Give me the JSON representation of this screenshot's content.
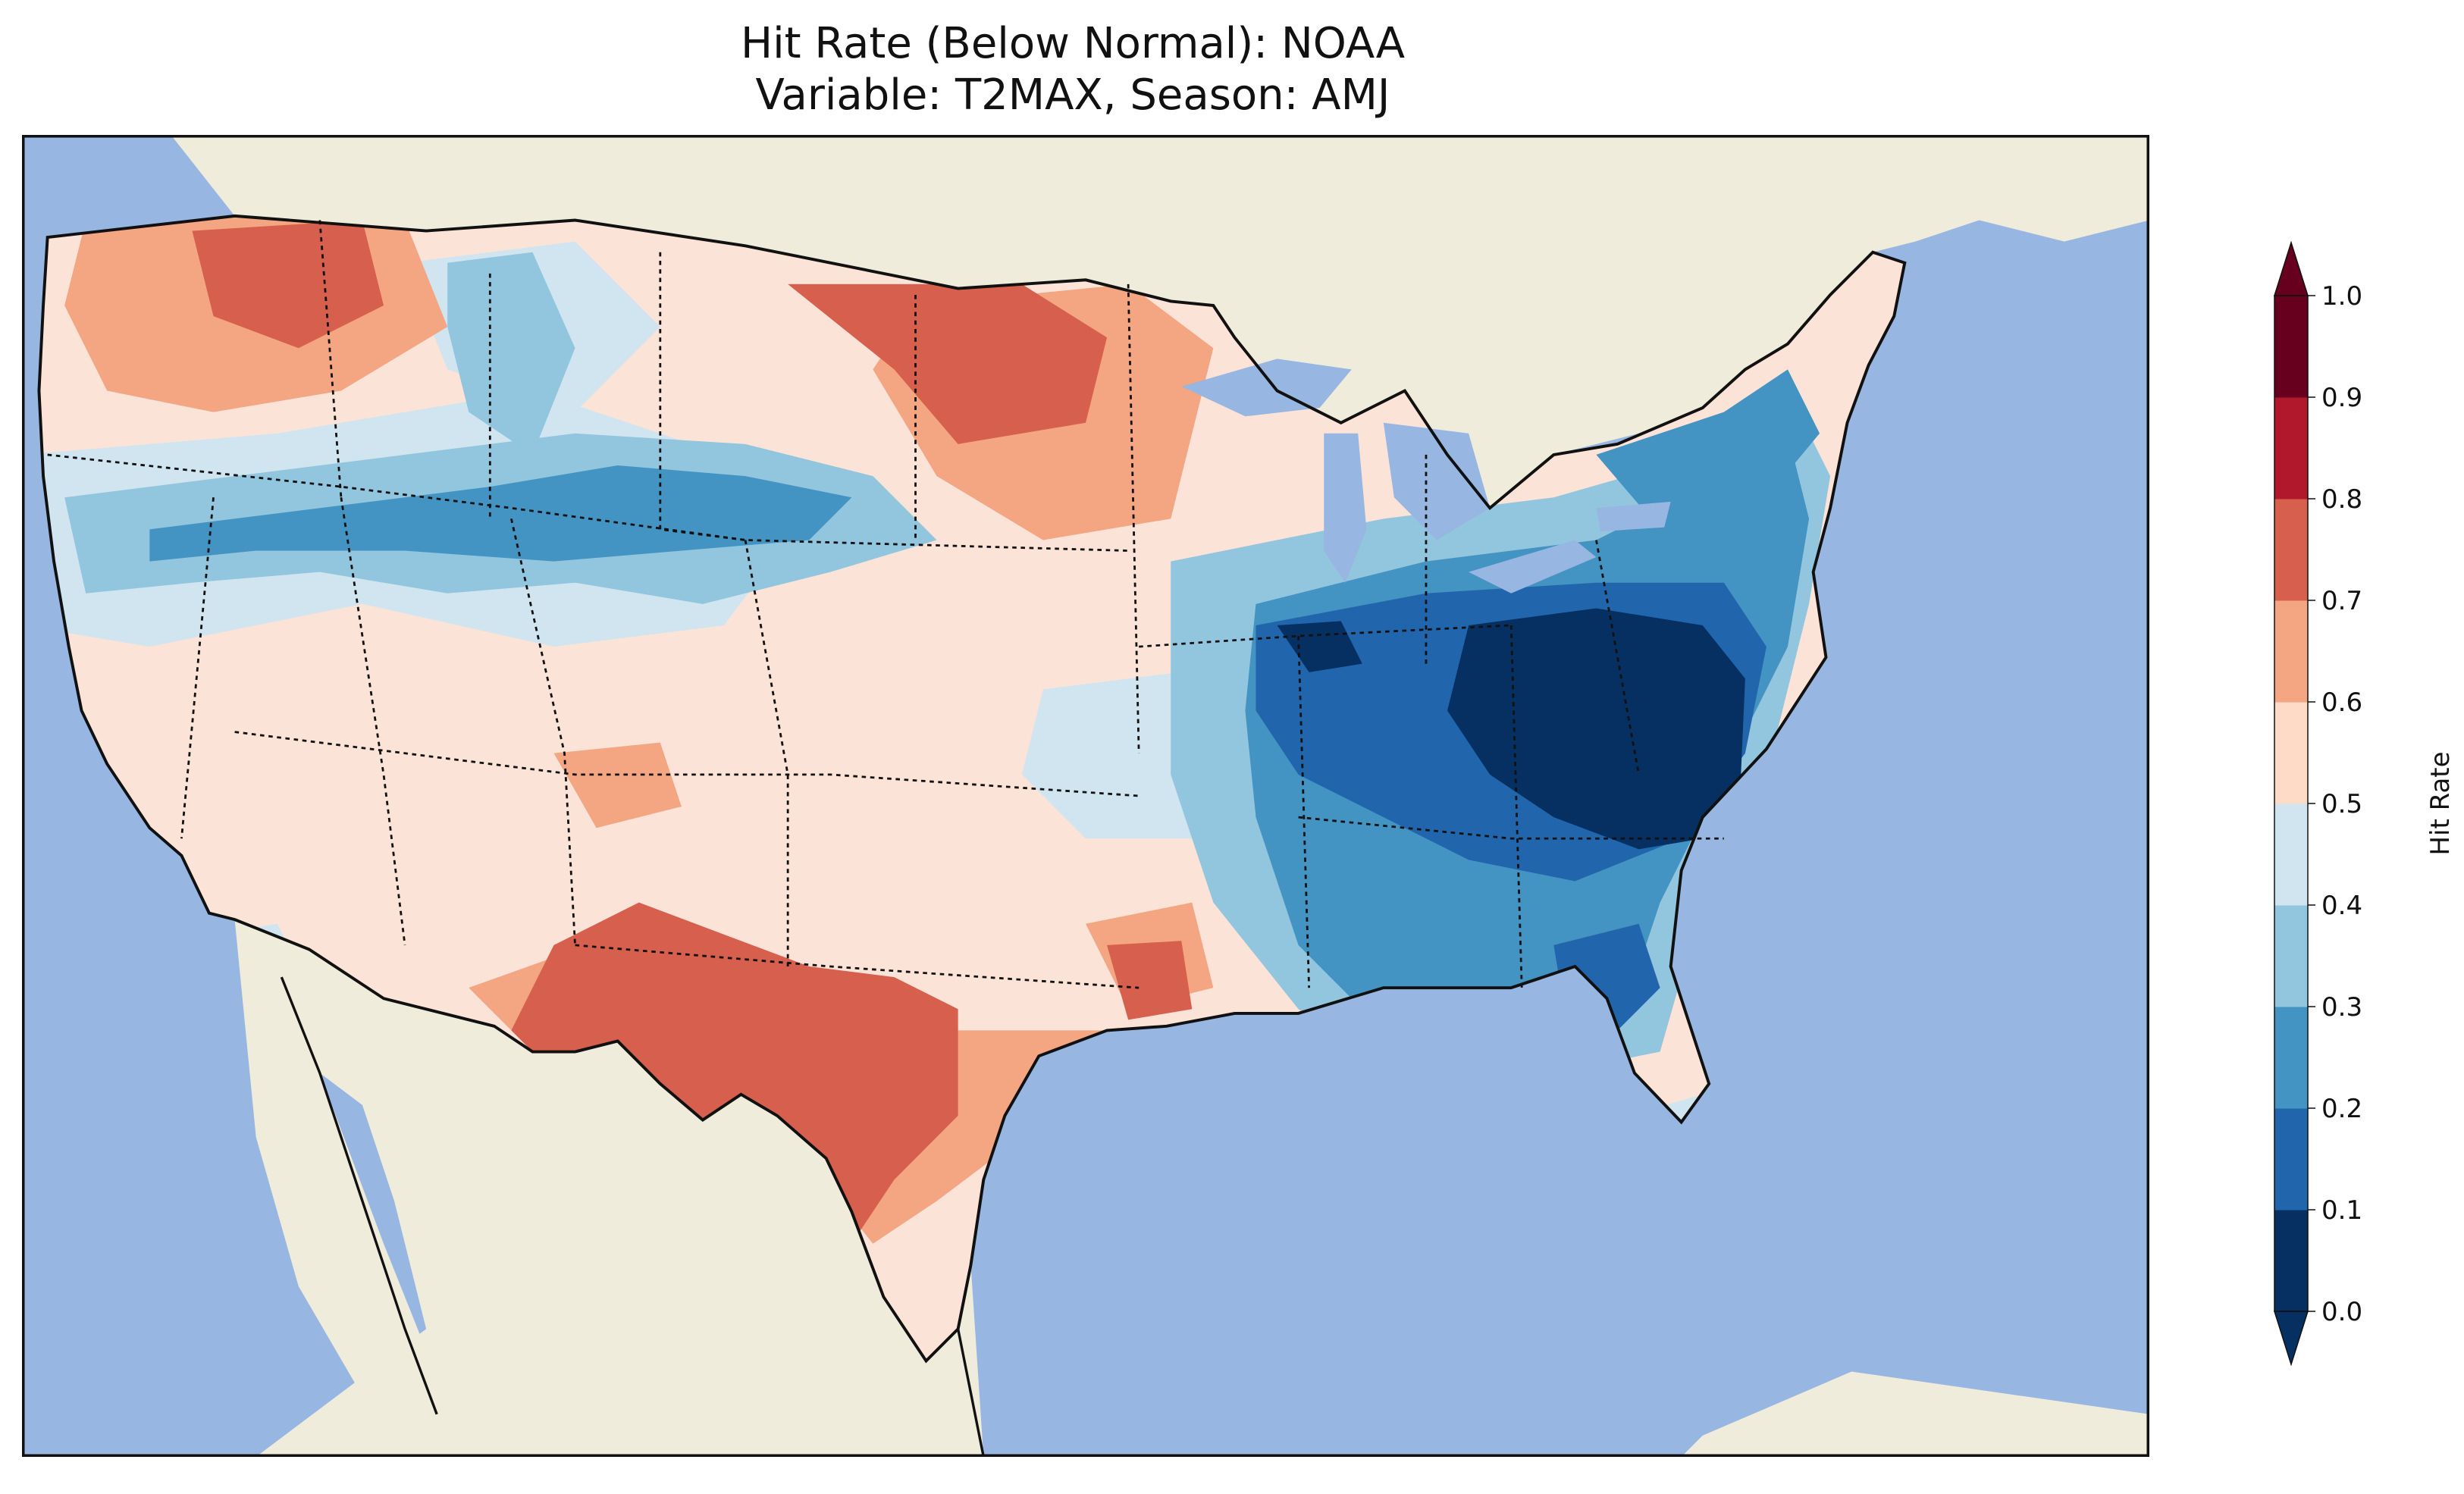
{
  "title": {
    "line1": "Hit Rate (Below Normal): NOAA",
    "line2": "Variable: T2MAX, Season: AMJ"
  },
  "colorbar": {
    "label": "Hit Rate",
    "ticks": [
      "0.0",
      "0.1",
      "0.2",
      "0.3",
      "0.4",
      "0.5",
      "0.6",
      "0.7",
      "0.8",
      "0.9",
      "1.0"
    ],
    "colors": [
      "#053061",
      "#2166ac",
      "#4393c3",
      "#92c5de",
      "#d1e5f0",
      "#fddbc7",
      "#f4a582",
      "#d6604d",
      "#b2182b",
      "#67001f"
    ],
    "extend": "both"
  },
  "map": {
    "ocean_color": "#97b6e1",
    "land_color": "#efecdc",
    "extent": "Contiguous United States",
    "regions": [
      {
        "name": "Pacific Northwest",
        "hit_rate": 0.65
      },
      {
        "name": "Northern Plains",
        "hit_rate": 0.75
      },
      {
        "name": "Central Rockies band",
        "hit_rate": 0.25
      },
      {
        "name": "Southwest / Texas",
        "hit_rate": 0.75
      },
      {
        "name": "Ohio Valley / Mid-Atlantic",
        "hit_rate": 0.05
      },
      {
        "name": "Southeast",
        "hit_rate": 0.25
      },
      {
        "name": "Florida",
        "hit_rate": 0.45
      },
      {
        "name": "Northeast",
        "hit_rate": 0.25
      }
    ]
  }
}
